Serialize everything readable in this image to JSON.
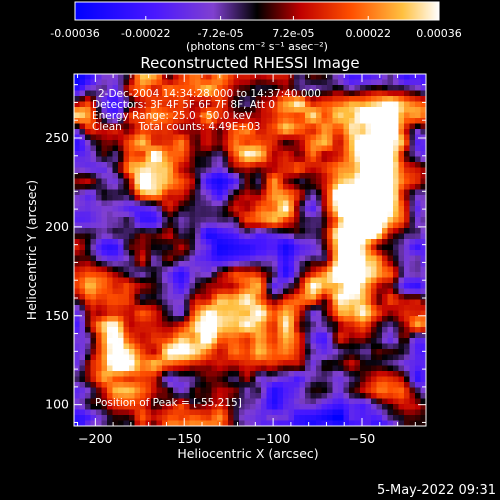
{
  "colorbar": {
    "tick_labels": [
      "-0.00036",
      "-0.00022",
      "-7.2e-05",
      "7.2e-05",
      "0.00022",
      "0.00036"
    ],
    "tick_values": [
      -0.00036,
      -0.00022,
      -7.2e-05,
      7.2e-05,
      0.00022,
      0.00036
    ],
    "range": [
      -0.00036,
      0.00036
    ],
    "units_label": "(photons cm⁻² s⁻¹ asec⁻²)"
  },
  "chart_data": {
    "type": "heatmap",
    "title": "Reconstructed RHESSI Image",
    "xlabel": "Heliocentric X (arcsec)",
    "ylabel": "Heliocentric Y (arcsec)",
    "xlim": [
      -212,
      -14
    ],
    "ylim": [
      88,
      286
    ],
    "x_ticks": [
      -200,
      -150,
      -100,
      -50
    ],
    "x_tick_labels": [
      "−200",
      "−150",
      "−100",
      "−50"
    ],
    "y_ticks": [
      100,
      150,
      200,
      250
    ],
    "y_tick_labels": [
      "100",
      "150",
      "200",
      "250"
    ],
    "value_range": [
      -0.00036,
      0.00036
    ],
    "annotations": [
      "2-Dec-2004 14:34:28.000 to 14:37:40.000",
      "Detectors: 3F 4F 5F 6F 7F 8F, Att 0",
      "Energy Range: 25.0 - 50.0 keV",
      "Clean     Total counts: 4.49E+03"
    ],
    "peak_label": "Position of Peak = [-55,215]",
    "peak": [
      -55,
      215
    ]
  },
  "footer": {
    "timestamp": "5-May-2022 09:31"
  }
}
